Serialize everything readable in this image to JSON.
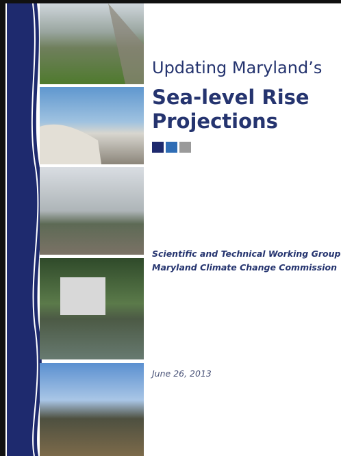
{
  "title": {
    "line1": "Updating Maryland’s",
    "line2": "Sea-level Rise",
    "line3": "Projections"
  },
  "authors": [
    "Scientific and Technical Working Group",
    "Maryland Climate Change Commission"
  ],
  "date": "June 26, 2013"
}
